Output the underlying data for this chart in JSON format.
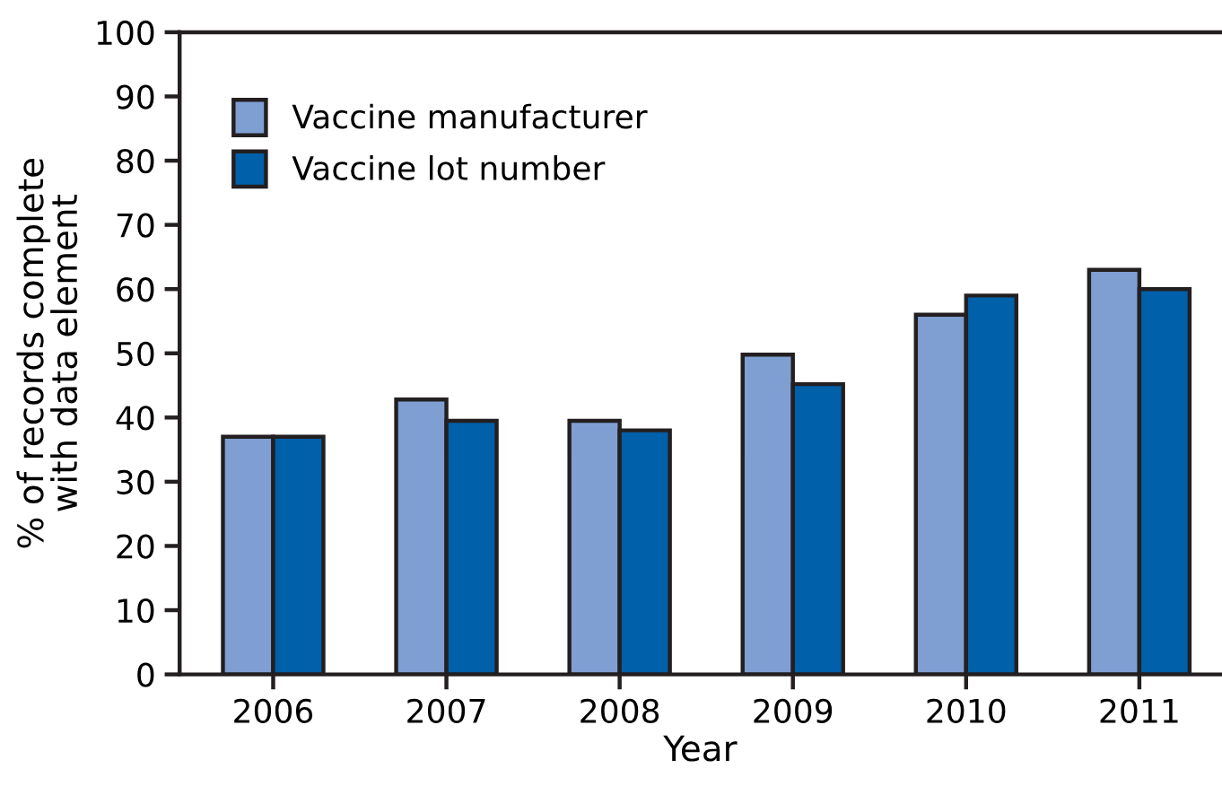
{
  "chart_data": {
    "type": "bar",
    "xlabel": "Year",
    "ylabel": "% of records complete\nwith data element",
    "categories": [
      "2006",
      "2007",
      "2008",
      "2009",
      "2010",
      "2011"
    ],
    "series": [
      {
        "name": "Vaccine manufacturer",
        "color": "#7f9fd3",
        "values": [
          37,
          42.8,
          39.5,
          49.8,
          56,
          63
        ]
      },
      {
        "name": "Vaccine lot number",
        "color": "#0060aa",
        "values": [
          37,
          39.5,
          38,
          45.2,
          59,
          60
        ]
      }
    ],
    "ylim": [
      0,
      100
    ],
    "yticks": [
      0,
      10,
      20,
      30,
      40,
      50,
      60,
      70,
      80,
      90,
      100
    ],
    "grid": false,
    "legend": "top left"
  }
}
